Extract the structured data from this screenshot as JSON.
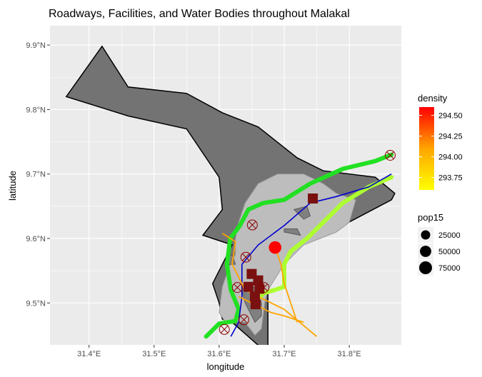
{
  "chart_data": {
    "type": "map",
    "title": "Roadways, Facilities, and Water Bodies throughout Malakal",
    "xlabel": "longitude",
    "ylabel": "latitude",
    "xlim": [
      31.34,
      31.88
    ],
    "ylim": [
      9.435,
      9.93
    ],
    "x_ticks": [
      {
        "value": 31.4,
        "label": "31.4°E"
      },
      {
        "value": 31.5,
        "label": "31.5°E"
      },
      {
        "value": 31.6,
        "label": "31.6°E"
      },
      {
        "value": 31.7,
        "label": "31.7°E"
      },
      {
        "value": 31.8,
        "label": "31.8°E"
      }
    ],
    "y_ticks": [
      {
        "value": 9.5,
        "label": "9.5°N"
      },
      {
        "value": 9.6,
        "label": "9.6°N"
      },
      {
        "value": 9.7,
        "label": "9.7°N"
      },
      {
        "value": 9.8,
        "label": "9.8°N"
      },
      {
        "value": 9.9,
        "label": "9.9°N"
      }
    ],
    "colors": {
      "panel": "#ebebeb",
      "grid": "#ffffff",
      "boundary": "#737373",
      "built_area": "#bdbdbd",
      "roads_primary": "#22e022",
      "roads_secondary": "#adff2f",
      "rivers": "#0000cd",
      "roads_minor": "#ffa500",
      "density_cells": "#7a1010",
      "facility_marker": "#8b0000",
      "pop_point": "#ff0000"
    },
    "boundary": [
      [
        31.365,
        9.82
      ],
      [
        31.42,
        9.898
      ],
      [
        31.46,
        9.835
      ],
      [
        31.55,
        9.825
      ],
      [
        31.605,
        9.795
      ],
      [
        31.66,
        9.773
      ],
      [
        31.72,
        9.725
      ],
      [
        31.76,
        9.705
      ],
      [
        31.84,
        9.695
      ],
      [
        31.87,
        9.67
      ],
      [
        31.865,
        9.66
      ],
      [
        31.78,
        9.615
      ],
      [
        31.74,
        9.6
      ],
      [
        31.71,
        9.578
      ],
      [
        31.685,
        9.555
      ],
      [
        31.675,
        9.535
      ],
      [
        31.675,
        9.43
      ],
      [
        31.665,
        9.43
      ],
      [
        31.62,
        9.47
      ],
      [
        31.605,
        9.475
      ],
      [
        31.6,
        9.5
      ],
      [
        31.59,
        9.53
      ],
      [
        31.62,
        9.59
      ],
      [
        31.575,
        9.605
      ],
      [
        31.605,
        9.645
      ],
      [
        31.6,
        9.695
      ],
      [
        31.55,
        9.77
      ],
      [
        31.46,
        9.79
      ],
      [
        31.365,
        9.82
      ]
    ],
    "built_area": [
      [
        31.6,
        9.485
      ],
      [
        31.61,
        9.47
      ],
      [
        31.64,
        9.47
      ],
      [
        31.655,
        9.45
      ],
      [
        31.665,
        9.46
      ],
      [
        31.67,
        9.5
      ],
      [
        31.675,
        9.52
      ],
      [
        31.7,
        9.56
      ],
      [
        31.73,
        9.59
      ],
      [
        31.78,
        9.61
      ],
      [
        31.8,
        9.625
      ],
      [
        31.81,
        9.66
      ],
      [
        31.78,
        9.67
      ],
      [
        31.76,
        9.685
      ],
      [
        31.73,
        9.7
      ],
      [
        31.69,
        9.7
      ],
      [
        31.66,
        9.685
      ],
      [
        31.64,
        9.655
      ],
      [
        31.63,
        9.625
      ],
      [
        31.625,
        9.6
      ],
      [
        31.625,
        9.575
      ],
      [
        31.615,
        9.555
      ],
      [
        31.605,
        9.525
      ],
      [
        31.6,
        9.485
      ]
    ],
    "water_bodies": [
      [
        [
          31.655,
          9.47
        ],
        [
          31.665,
          9.48
        ],
        [
          31.665,
          9.5
        ],
        [
          31.66,
          9.52
        ],
        [
          31.645,
          9.53
        ],
        [
          31.635,
          9.52
        ],
        [
          31.64,
          9.5
        ],
        [
          31.655,
          9.47
        ]
      ],
      [
        [
          31.73,
          9.63
        ],
        [
          31.74,
          9.635
        ],
        [
          31.735,
          9.65
        ],
        [
          31.715,
          9.645
        ],
        [
          31.73,
          9.63
        ]
      ],
      [
        [
          31.7,
          9.61
        ],
        [
          31.725,
          9.605
        ],
        [
          31.72,
          9.615
        ],
        [
          31.7,
          9.615
        ],
        [
          31.7,
          9.61
        ]
      ],
      [
        [
          31.615,
          9.56
        ],
        [
          31.625,
          9.56
        ],
        [
          31.62,
          9.575
        ],
        [
          31.61,
          9.57
        ],
        [
          31.615,
          9.56
        ]
      ]
    ],
    "roads_primary": [
      [
        31.58,
        9.448
      ],
      [
        31.6,
        9.468
      ],
      [
        31.625,
        9.472
      ],
      [
        31.63,
        9.49
      ],
      [
        31.618,
        9.52
      ],
      [
        31.612,
        9.56
      ],
      [
        31.617,
        9.6
      ],
      [
        31.632,
        9.62
      ],
      [
        31.645,
        9.645
      ],
      [
        31.668,
        9.655
      ],
      [
        31.7,
        9.66
      ],
      [
        31.74,
        9.685
      ],
      [
        31.79,
        9.708
      ],
      [
        31.84,
        9.72
      ],
      [
        31.865,
        9.73
      ]
    ],
    "roads_secondary": [
      [
        31.655,
        9.5
      ],
      [
        31.668,
        9.515
      ],
      [
        31.685,
        9.52
      ],
      [
        31.7,
        9.525
      ],
      [
        31.7,
        9.56
      ],
      [
        31.71,
        9.58
      ],
      [
        31.735,
        9.6
      ],
      [
        31.765,
        9.63
      ],
      [
        31.79,
        9.655
      ],
      [
        31.83,
        9.68
      ],
      [
        31.865,
        9.695
      ]
    ],
    "rivers": [
      [
        31.618,
        9.448
      ],
      [
        31.63,
        9.47
      ],
      [
        31.635,
        9.51
      ],
      [
        31.635,
        9.56
      ],
      [
        31.66,
        9.59
      ],
      [
        31.7,
        9.62
      ],
      [
        31.74,
        9.655
      ],
      [
        31.78,
        9.665
      ],
      [
        31.83,
        9.68
      ],
      [
        31.865,
        9.7
      ]
    ],
    "roads_minor": [
      [
        [
          31.605,
          9.608
        ],
        [
          31.625,
          9.595
        ],
        [
          31.62,
          9.56
        ],
        [
          31.64,
          9.52
        ],
        [
          31.66,
          9.51
        ],
        [
          31.7,
          9.49
        ],
        [
          31.75,
          9.448
        ]
      ],
      [
        [
          31.685,
          9.59
        ],
        [
          31.695,
          9.56
        ],
        [
          31.7,
          9.53
        ],
        [
          31.71,
          9.5
        ],
        [
          31.72,
          9.47
        ]
      ],
      [
        [
          31.63,
          9.51
        ],
        [
          31.66,
          9.495
        ],
        [
          31.68,
          9.485
        ],
        [
          31.7,
          9.48
        ],
        [
          31.73,
          9.47
        ]
      ]
    ],
    "density_cells": [
      {
        "lon": 31.744,
        "lat": 9.662,
        "density": 294.6
      },
      {
        "lon": 31.65,
        "lat": 9.545,
        "density": 294.5
      },
      {
        "lon": 31.66,
        "lat": 9.535,
        "density": 294.4
      },
      {
        "lon": 31.645,
        "lat": 9.525,
        "density": 294.5
      },
      {
        "lon": 31.662,
        "lat": 9.522,
        "density": 294.3
      },
      {
        "lon": 31.655,
        "lat": 9.51,
        "density": 294.4
      },
      {
        "lon": 31.656,
        "lat": 9.498,
        "density": 294.5
      }
    ],
    "facilities": [
      {
        "lon": 31.863,
        "lat": 9.729
      },
      {
        "lon": 31.651,
        "lat": 9.621
      },
      {
        "lon": 31.641,
        "lat": 9.571
      },
      {
        "lon": 31.628,
        "lat": 9.524
      },
      {
        "lon": 31.669,
        "lat": 9.524
      },
      {
        "lon": 31.638,
        "lat": 9.474
      },
      {
        "lon": 31.608,
        "lat": 9.459
      }
    ],
    "population_points": [
      {
        "lon": 31.686,
        "lat": 9.586,
        "pop15": 70000
      }
    ],
    "legend_density": {
      "title": "density",
      "labels": [
        "294.50",
        "294.25",
        "294.00",
        "293.75"
      ],
      "range": [
        293.6,
        294.6
      ],
      "colors": [
        "#ffff00",
        "#ffa500",
        "#ff0000"
      ]
    },
    "legend_pop": {
      "title": "pop15",
      "labels": [
        "25000",
        "50000",
        "75000"
      ],
      "values": [
        25000,
        50000,
        75000
      ]
    }
  }
}
